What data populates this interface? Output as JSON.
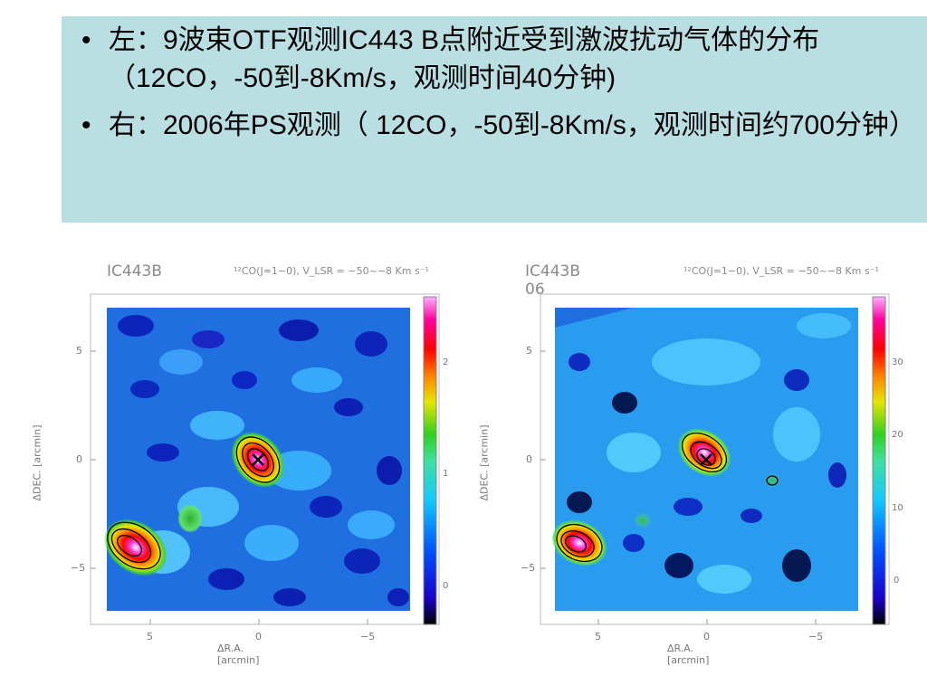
{
  "slide": {
    "bullets": [
      {
        "symbol": "•",
        "text": "左：9波束OTF观测IC443 B点附近受到激波扰动气体的分布（12CO，-50到-8Km/s，观测时间40分钟)"
      },
      {
        "symbol": "•",
        "text": "右：2006年PS观测（ 12CO，-50到-8Km/s，观测时间约700分钟）"
      }
    ]
  },
  "left_map": {
    "title": "IC443B",
    "subtitle": "¹²CO(J=1−0), V_LSR = −50~−8 Km s⁻¹",
    "xlabel": "ΔR.A. [arcmin]",
    "ylabel": "ΔDEC. [arcmin]",
    "xticks": [
      "5",
      "0",
      "−5"
    ],
    "yticks": [
      "5",
      "0",
      "−5"
    ],
    "colorbar_ticks": [
      "2",
      "1",
      "0"
    ]
  },
  "right_map": {
    "title": "IC443B 06",
    "subtitle": "¹²CO(J=1−0), V_LSR = −50~−8 Km s⁻¹",
    "xlabel": "ΔR.A. [arcmin]",
    "ylabel": "ΔDEC. [arcmin]",
    "xticks": [
      "5",
      "0",
      "−5"
    ],
    "yticks": [
      "5",
      "0",
      "−5"
    ],
    "colorbar_ticks": [
      "30",
      "20",
      "10",
      "0"
    ]
  },
  "colors": {
    "textbox_bg": "#b9dfe3",
    "map_bg": "#1f6fe0",
    "colormap": [
      "#000000",
      "#1a00c8",
      "#0050ff",
      "#14c8ff",
      "#40e0a0",
      "#30d020",
      "#e6e600",
      "#ff8000",
      "#ff0000",
      "#ff00a0",
      "#ff80ff",
      "#ffffff"
    ]
  }
}
